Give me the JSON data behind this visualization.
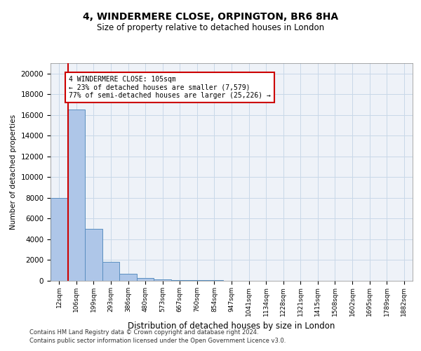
{
  "title": "4, WINDERMERE CLOSE, ORPINGTON, BR6 8HA",
  "subtitle": "Size of property relative to detached houses in London",
  "xlabel": "Distribution of detached houses by size in London",
  "ylabel": "Number of detached properties",
  "categories": [
    "12sqm",
    "106sqm",
    "199sqm",
    "293sqm",
    "386sqm",
    "480sqm",
    "573sqm",
    "667sqm",
    "760sqm",
    "854sqm",
    "947sqm",
    "1041sqm",
    "1134sqm",
    "1228sqm",
    "1321sqm",
    "1415sqm",
    "1508sqm",
    "1602sqm",
    "1695sqm",
    "1789sqm",
    "1882sqm"
  ],
  "values": [
    8000,
    16500,
    5000,
    1800,
    700,
    250,
    150,
    100,
    100,
    50,
    0,
    0,
    0,
    0,
    0,
    0,
    0,
    0,
    0,
    0,
    0
  ],
  "bar_color": "#aec6e8",
  "bar_edge_color": "#5a8fc0",
  "vline_color": "#cc0000",
  "annotation_box_text": "4 WINDERMERE CLOSE: 105sqm\n← 23% of detached houses are smaller (7,579)\n77% of semi-detached houses are larger (25,226) →",
  "annotation_box_color": "#cc0000",
  "annotation_box_fill": "#ffffff",
  "ylim": [
    0,
    21000
  ],
  "yticks": [
    0,
    2000,
    4000,
    6000,
    8000,
    10000,
    12000,
    14000,
    16000,
    18000,
    20000
  ],
  "grid_color": "#c8d8e8",
  "background_color": "#eef2f8",
  "footer_line1": "Contains HM Land Registry data © Crown copyright and database right 2024.",
  "footer_line2": "Contains public sector information licensed under the Open Government Licence v3.0."
}
